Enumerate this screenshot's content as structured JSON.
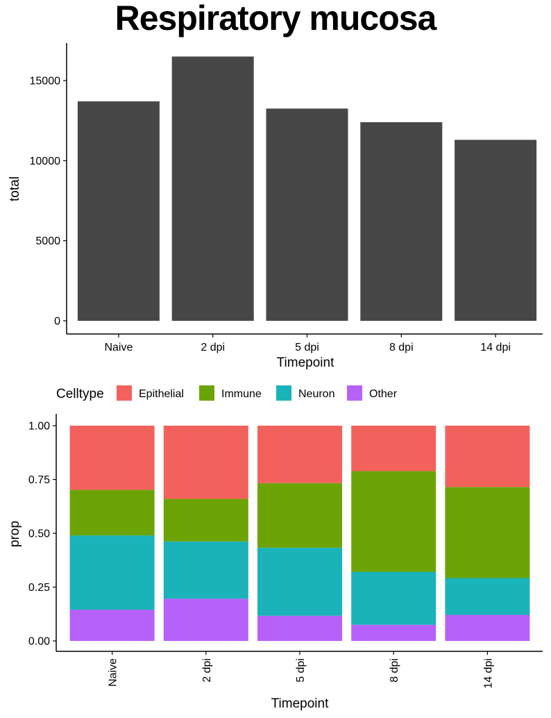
{
  "title": "Respiratory mucosa",
  "chart_data": [
    {
      "type": "bar",
      "categories": [
        "Naive",
        "2 dpi",
        "5 dpi",
        "8 dpi",
        "14 dpi"
      ],
      "values": [
        13700,
        16500,
        13250,
        12400,
        11300
      ],
      "xlabel": "Timepoint",
      "ylabel": "total",
      "ylim": [
        0,
        17200
      ],
      "yticks": [
        0,
        5000,
        10000,
        15000
      ],
      "ytick_labels": [
        "0",
        "5000",
        "10000",
        "15000"
      ],
      "bar_color": "#474747",
      "grid": false
    },
    {
      "type": "bar",
      "stacked": true,
      "categories": [
        "Naive",
        "2 dpi",
        "5 dpi",
        "8 dpi",
        "14 dpi"
      ],
      "xlabel": "Timepoint",
      "ylabel": "prop",
      "ylim": [
        0,
        1.0
      ],
      "yticks": [
        0,
        0.25,
        0.5,
        0.75,
        1.0
      ],
      "ytick_labels": [
        "0.00",
        "0.25",
        "0.50",
        "0.75",
        "1.00"
      ],
      "legend": {
        "title": "Celltype",
        "position": "top"
      },
      "grid": false,
      "series": [
        {
          "name": "Other",
          "color": "#b561fa",
          "values": [
            0.145,
            0.196,
            0.117,
            0.075,
            0.121
          ]
        },
        {
          "name": "Neuron",
          "color": "#19b3b9",
          "values": [
            0.345,
            0.266,
            0.316,
            0.246,
            0.171
          ]
        },
        {
          "name": "Immune",
          "color": "#6ba304",
          "values": [
            0.212,
            0.198,
            0.3,
            0.468,
            0.423
          ]
        },
        {
          "name": "Epithelial",
          "color": "#f3615c",
          "values": [
            0.298,
            0.34,
            0.267,
            0.211,
            0.285
          ]
        }
      ],
      "legend_order": [
        "Epithelial",
        "Immune",
        "Neuron",
        "Other"
      ]
    }
  ]
}
